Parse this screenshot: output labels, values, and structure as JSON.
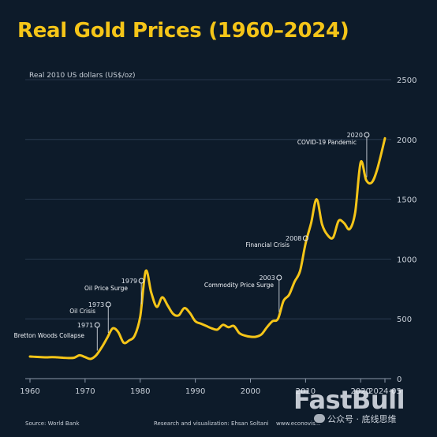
{
  "chart_data": {
    "type": "line",
    "title": "Real Gold Prices (1960–2024)",
    "ylabel": "Real 2010 US dollars (US$/oz)",
    "xlabel": "",
    "xlim": [
      1960,
      2024.4
    ],
    "ylim": [
      0,
      2500
    ],
    "x_ticks": [
      {
        "value": 1960,
        "label": "1960"
      },
      {
        "value": 1970,
        "label": "1970"
      },
      {
        "value": 1980,
        "label": "1980"
      },
      {
        "value": 1990,
        "label": "1990"
      },
      {
        "value": 2000,
        "label": "2000"
      },
      {
        "value": 2010,
        "label": "2010"
      },
      {
        "value": 2020,
        "label": "2020"
      },
      {
        "value": 2024.4,
        "label": "2024-05"
      }
    ],
    "y_ticks": [
      0,
      500,
      1000,
      1500,
      2000,
      2500
    ],
    "grid": "horizontal",
    "color": "#f5c518",
    "series": [
      {
        "x": [
          1960,
          1961,
          1962,
          1963,
          1964,
          1965,
          1966,
          1967,
          1968,
          1969,
          1970,
          1971,
          1972,
          1973,
          1974,
          1975,
          1976,
          1977,
          1978,
          1979,
          1980,
          1981,
          1982,
          1983,
          1984,
          1985,
          1986,
          1987,
          1988,
          1989,
          1990,
          1991,
          1992,
          1993,
          1994,
          1995,
          1996,
          1997,
          1998,
          1999,
          2000,
          2001,
          2002,
          2003,
          2004,
          2005,
          2006,
          2007,
          2008,
          2009,
          2010,
          2011,
          2012,
          2013,
          2014,
          2015,
          2016,
          2017,
          2018,
          2019,
          2020,
          2021,
          2022,
          2023,
          2024.4
        ],
        "y": [
          185,
          182,
          180,
          178,
          180,
          178,
          175,
          172,
          175,
          195,
          180,
          165,
          195,
          260,
          340,
          420,
          390,
          300,
          320,
          360,
          520,
          900,
          720,
          600,
          680,
          610,
          540,
          530,
          590,
          550,
          480,
          460,
          440,
          420,
          410,
          450,
          430,
          440,
          380,
          360,
          350,
          350,
          370,
          430,
          480,
          500,
          650,
          700,
          810,
          900,
          1130,
          1300,
          1500,
          1290,
          1200,
          1180,
          1320,
          1300,
          1250,
          1390,
          1810,
          1660,
          1640,
          1750,
          2010
        ]
      }
    ],
    "annotations": [
      {
        "year": "1971",
        "text": "Bretton Woods Collapse",
        "x": 1971,
        "y": 165
      },
      {
        "year": "1973",
        "text": "Oil Crisis",
        "x": 1973,
        "y": 260
      },
      {
        "year": "1979",
        "text": "Oil Price Surge",
        "x": 1979,
        "y": 360
      },
      {
        "year": "2003",
        "text": "Commodity Price Surge",
        "x": 2003,
        "y": 430
      },
      {
        "year": "2008",
        "text": "Financial Crisis",
        "x": 2008,
        "y": 810
      },
      {
        "year": "2020",
        "text": "COVID-19 Pandemic",
        "x": 2020,
        "y": 1810
      }
    ]
  },
  "footer": {
    "source": "Source: World Bank",
    "credit": "Research and visualization: Ehsan Soltani",
    "site": "www.econovis..."
  },
  "watermark": {
    "brand": "FastBull",
    "wechat": "公众号 · 底线思维"
  }
}
